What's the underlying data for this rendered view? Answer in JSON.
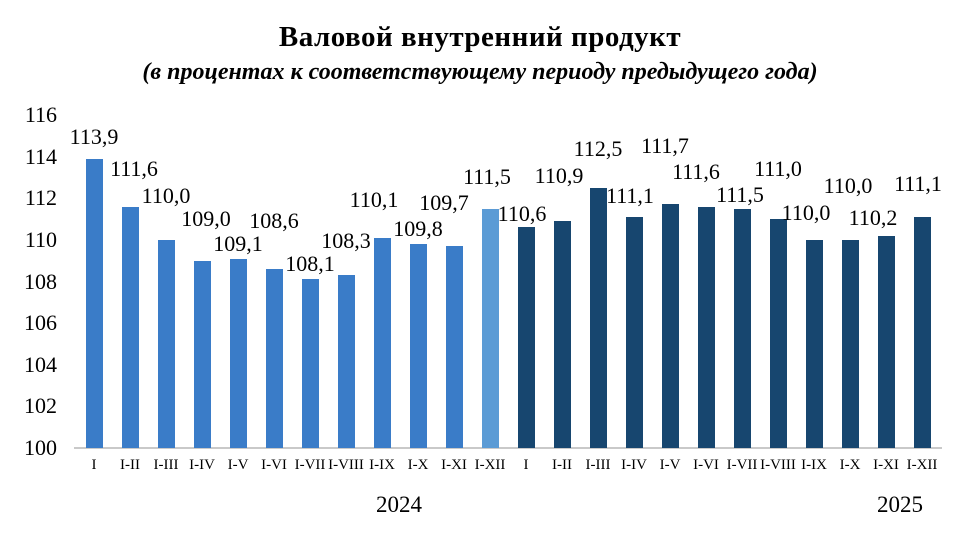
{
  "header": {
    "title": "Валовой внутренний продукт",
    "subtitle": "(в процентах к соответствующему периоду предыдущего года)"
  },
  "chart_data": {
    "type": "bar",
    "title": "Валовой внутренний продукт",
    "subtitle": "(в процентах к соответствующему периоду предыдущего года)",
    "ylim": [
      100,
      116
    ],
    "yticks": [
      "100",
      "102",
      "104",
      "106",
      "108",
      "110",
      "112",
      "114",
      "116"
    ],
    "grid": false,
    "legend": false,
    "colors": {
      "bar_2024": "#3a7cc8",
      "bar_2024_last": "#5b9bd5",
      "bar_2025": "#17466f",
      "baseline": "#c9c9c9",
      "text": "#000000"
    },
    "groups": [
      {
        "year_label": "2024",
        "categories": [
          "I",
          "I-II",
          "I-III",
          "I-IV",
          "I-V",
          "I-VI",
          "I-VII",
          "I-VIII",
          "I-IX",
          "I-X",
          "I-XI",
          "I-XII"
        ],
        "values": [
          113.9,
          111.6,
          110.0,
          109.0,
          109.1,
          108.6,
          108.1,
          108.3,
          110.1,
          109.8,
          109.7,
          111.5
        ],
        "labels": [
          "113,9",
          "111,6",
          "110,0",
          "109,0",
          "109,1",
          "108,6",
          "108,1",
          "108,3",
          "110,1",
          "109,8",
          "109,7",
          "111,5"
        ],
        "bar_color": "#3a7cc8",
        "last_bar_color": "#5b9bd5"
      },
      {
        "year_label": "2025",
        "categories": [
          "I",
          "I-II",
          "I-III",
          "I-IV",
          "I-V",
          "I-VI",
          "I-VII",
          "I-VIII",
          "I-IX",
          "I-X",
          "I-XI",
          "I-XII"
        ],
        "values": [
          110.6,
          110.9,
          112.5,
          111.1,
          111.7,
          111.6,
          111.5,
          111.0,
          110.0,
          110.0,
          110.2,
          111.1
        ],
        "labels": [
          "110,6",
          "110,9",
          "112,5",
          "111,1",
          "111,7",
          "111,6",
          "111,5",
          "111,0",
          "110,0",
          "110,0",
          "110,2",
          "111,1"
        ],
        "bar_color": "#17466f"
      }
    ]
  }
}
